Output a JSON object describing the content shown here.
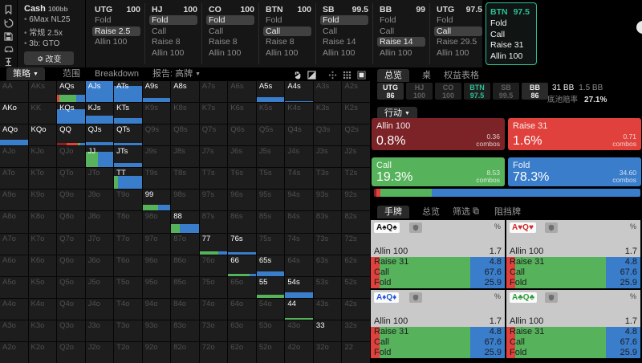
{
  "colors": {
    "allin": "#8c2023",
    "raise": "#e0413c",
    "call": "#56b35c",
    "fold": "#3a7dcb",
    "teal": "#2bbf96"
  },
  "sidebar": {
    "icons": [
      "bookmark-icon",
      "history-icon",
      "save-icon",
      "car-icon",
      "slider-icon"
    ]
  },
  "config": {
    "game": "Cash",
    "stakes": "100bb",
    "bullets": [
      "6Max NL25",
      "常规 2.5x",
      "3b: GTO"
    ],
    "change_button": "改变"
  },
  "action_tree": {
    "columns": [
      {
        "name": "UTG",
        "stack": "100",
        "active": false,
        "actions": [
          {
            "t": "Fold"
          },
          {
            "t": "Raise 2.5",
            "hl": true
          },
          {
            "t": "Allin 100"
          }
        ]
      },
      {
        "name": "HJ",
        "stack": "100",
        "active": false,
        "actions": [
          {
            "t": "Fold",
            "hl": true
          },
          {
            "t": "Call"
          },
          {
            "t": "Raise 8"
          },
          {
            "t": "Allin 100"
          }
        ]
      },
      {
        "name": "CO",
        "stack": "100",
        "active": false,
        "actions": [
          {
            "t": "Fold",
            "hl": true
          },
          {
            "t": "Call"
          },
          {
            "t": "Raise 8"
          },
          {
            "t": "Allin 100"
          }
        ]
      },
      {
        "name": "BTN",
        "stack": "100",
        "active": false,
        "actions": [
          {
            "t": "Fold"
          },
          {
            "t": "Call",
            "hl": true
          },
          {
            "t": "Raise 8"
          },
          {
            "t": "Allin 100"
          }
        ]
      },
      {
        "name": "SB",
        "stack": "99.5",
        "active": false,
        "actions": [
          {
            "t": "Fold",
            "hl": true
          },
          {
            "t": "Call"
          },
          {
            "t": "Raise 14"
          },
          {
            "t": "Allin 100"
          }
        ]
      },
      {
        "name": "BB",
        "stack": "99",
        "active": false,
        "actions": [
          {
            "t": "Fold"
          },
          {
            "t": "Call"
          },
          {
            "t": "Raise 14",
            "hl": true
          },
          {
            "t": "Allin 100"
          }
        ]
      },
      {
        "name": "UTG",
        "stack": "97.5",
        "active": false,
        "actions": [
          {
            "t": "Fold"
          },
          {
            "t": "Call",
            "hl": true
          },
          {
            "t": "Raise 29.5"
          },
          {
            "t": "Allin 100"
          }
        ]
      },
      {
        "name": "BTN",
        "stack": "97.5",
        "active": true,
        "actions": [
          {
            "t": "Fold"
          },
          {
            "t": "Call"
          },
          {
            "t": "Raise 31"
          },
          {
            "t": "Allin 100"
          }
        ]
      }
    ]
  },
  "matrix_toolbar": {
    "tabs": [
      {
        "label": "策略",
        "caret": true,
        "active": true
      },
      {
        "label": "范围",
        "caret": false,
        "active": false
      },
      {
        "label": "Breakdown",
        "caret": false,
        "active": false
      },
      {
        "label": "报告: 高牌",
        "caret": true,
        "active": false
      }
    ],
    "icons": [
      "hand-icon",
      "contrast-icon",
      "crosshair-icon",
      "grid-icon",
      "square-icon"
    ]
  },
  "matrix": {
    "rows": [
      "AA AKs AQs AJs ATs A9s A8s A7s A6s A5s A4s A3s A2s",
      "AKo KK KQs KJs KTs K9s K8s K7s K6s K5s K4s K3s K2s",
      "AQo KQo QQ QJs QTs Q9s Q8s Q7s Q6s Q5s Q4s Q3s Q2s",
      "AJo KJo QJo JJ JTs J9s J8s J7s J6s J5s J4s J3s J2s",
      "ATo KTo QTo JTo TT T9s T8s T7s T6s T5s T4s T3s T2s",
      "A9o K9o Q9o J9o T9o 99 98s 97s 96s 95s 94s 93s 92s",
      "A8o K8o Q8o J8o T8o 98o 88 87s 86s 85s 84s 83s 82s",
      "A7o K7o Q7o J7o T7o 97o 87o 77 76s 75s 74s 73s 72s",
      "A6o K6o Q6o J6o T6o 96o 86o 76o 66 65s 64s 63s 62s",
      "A5o K5o Q5o J5o T5o 95o 85o 75o 65o 55 54s 53s 52s",
      "A4o K4o Q4o J4o T4o 94o 84o 74o 64o 54o 44 43s 42s",
      "A3o K3o Q3o J3o T3o 93o 83o 73o 63o 53o 43o 33 32s",
      "A2o K2o Q2o J2o T2o 92o 82o 72o 62o 52o 42o 32o 22"
    ],
    "in_range": [
      "AQs",
      "AJs",
      "ATs",
      "A9s",
      "A8s",
      "A5s",
      "A4s",
      "AKo",
      "KQs",
      "KJs",
      "KTs",
      "AQo",
      "KQo",
      "QQ",
      "QJs",
      "QTs",
      "JJ",
      "JTs",
      "TT",
      "99",
      "88",
      "77",
      "76s",
      "66",
      "65s",
      "55",
      "54s",
      "44",
      "33"
    ],
    "bars": {
      "AQs": {
        "h": 0.33,
        "segs": [
          [
            "raise",
            0.09
          ],
          [
            "call",
            0.61
          ],
          [
            "fold",
            0.3
          ]
        ]
      },
      "AJs": {
        "h": 1.0,
        "segs": [
          [
            "fold",
            1
          ]
        ]
      },
      "ATs": {
        "h": 0.78,
        "segs": [
          [
            "fold",
            1
          ]
        ]
      },
      "A9s": {
        "h": 0.2,
        "segs": [
          [
            "fold",
            1
          ]
        ]
      },
      "A5s": {
        "h": 0.23,
        "segs": [
          [
            "fold",
            1
          ]
        ]
      },
      "A4s": {
        "h": 0.06,
        "segs": [
          [
            "fold",
            1
          ]
        ]
      },
      "KQs": {
        "h": 0.7,
        "segs": [
          [
            "fold",
            1
          ]
        ]
      },
      "KJs": {
        "h": 0.4,
        "segs": [
          [
            "fold",
            1
          ]
        ]
      },
      "KTs": {
        "h": 0.28,
        "segs": [
          [
            "fold",
            1
          ]
        ]
      },
      "AQo": {
        "h": 0.26,
        "segs": [
          [
            "fold",
            1
          ]
        ]
      },
      "QQ": {
        "h": 0.13,
        "segs": [
          [
            "allin",
            0.35
          ],
          [
            "raise",
            0.4
          ],
          [
            "call",
            0.1
          ],
          [
            "fold",
            0.15
          ]
        ]
      },
      "QJs": {
        "h": 0.18,
        "segs": [
          [
            "fold",
            1
          ]
        ]
      },
      "QTs": {
        "h": 0.14,
        "segs": [
          [
            "fold",
            1
          ]
        ]
      },
      "JJ": {
        "h": 0.75,
        "segs": [
          [
            "call",
            0.45
          ],
          [
            "fold",
            0.55
          ]
        ]
      },
      "JTs": {
        "h": 0.22,
        "segs": [
          [
            "fold",
            1
          ]
        ]
      },
      "TT": {
        "h": 0.63,
        "segs": [
          [
            "call",
            0.14
          ],
          [
            "fold",
            0.86
          ]
        ]
      },
      "99": {
        "h": 0.3,
        "segs": [
          [
            "call",
            0.55
          ],
          [
            "fold",
            0.45
          ]
        ]
      },
      "88": {
        "h": 0.4,
        "segs": [
          [
            "call",
            0.3
          ],
          [
            "fold",
            0.7
          ]
        ]
      },
      "77": {
        "h": 0.15,
        "segs": [
          [
            "call",
            0.68
          ],
          [
            "fold",
            0.32
          ]
        ]
      },
      "76s": {
        "h": 0.1,
        "segs": [
          [
            "fold",
            1
          ]
        ]
      },
      "66": {
        "h": 0.12,
        "segs": [
          [
            "call",
            0.78
          ],
          [
            "fold",
            0.22
          ]
        ]
      },
      "65s": {
        "h": 0.23,
        "segs": [
          [
            "fold",
            1
          ]
        ]
      },
      "55": {
        "h": 0.15,
        "segs": [
          [
            "call",
            1
          ]
        ]
      },
      "54s": {
        "h": 0.26,
        "segs": [
          [
            "fold",
            1
          ]
        ]
      },
      "44": {
        "h": 0.07,
        "segs": [
          [
            "call",
            1
          ]
        ]
      }
    }
  },
  "overview": {
    "tabs": [
      {
        "label": "总览",
        "active": true
      },
      {
        "label": "桌",
        "active": false
      },
      {
        "label": "权益表格",
        "active": false
      }
    ],
    "positions": [
      {
        "name": "UTG",
        "stack": "86",
        "state": "white"
      },
      {
        "name": "HJ",
        "stack": "100",
        "state": "dim"
      },
      {
        "name": "CO",
        "stack": "100",
        "state": "dim"
      },
      {
        "name": "BTN",
        "stack": "97.5",
        "state": "teal"
      },
      {
        "name": "SB",
        "stack": "99.5",
        "state": "dim"
      },
      {
        "name": "BB",
        "stack": "86",
        "state": "white"
      }
    ],
    "pot": {
      "amount": "31 BB",
      "extra": "1.5 BB",
      "odds_label": "底池赔率",
      "odds_value": "27.1%"
    },
    "action_section_label": "行动",
    "combos_word": "combos",
    "action_cards": [
      {
        "label": "Allin 100",
        "percent": "0.8%",
        "combos": "0.36",
        "color": "#7c2327"
      },
      {
        "label": "Raise 31",
        "percent": "1.6%",
        "combos": "0.71",
        "color": "#e0413c"
      },
      {
        "label": "Call",
        "percent": "19.3%",
        "combos": "8.53",
        "color": "#56b35c"
      },
      {
        "label": "Fold",
        "percent": "78.3%",
        "combos": "34.60",
        "color": "#3a7dcb"
      }
    ],
    "strategy_bar": [
      {
        "color": "#8c2023",
        "pct": 0.8
      },
      {
        "color": "#e0413c",
        "pct": 1.6
      },
      {
        "color": "#56b35c",
        "pct": 19.3
      },
      {
        "color": "#3a7dcb",
        "pct": 78.3
      }
    ]
  },
  "hands": {
    "tabs": [
      {
        "label": "手牌",
        "active": true,
        "icon": null
      },
      {
        "label": "总览",
        "active": false,
        "icon": null
      },
      {
        "label": "筛选",
        "active": false,
        "icon": "copy-icon"
      },
      {
        "label": "阻挡牌",
        "active": false,
        "icon": null
      }
    ],
    "percent_symbol": "%",
    "cards": [
      {
        "combo": "A♠Q♠",
        "suit_color": "#111111",
        "rows": [
          {
            "label": "Allin 100",
            "value": "1.7"
          },
          {
            "label": "Raise 31",
            "value": "4.8"
          },
          {
            "label": "Call",
            "value": "67.6"
          },
          {
            "label": "Fold",
            "value": "25.9"
          }
        ],
        "bar": {
          "red": 6.5,
          "green": 67.6,
          "blue": 25.9
        }
      },
      {
        "combo": "A♥Q♥",
        "suit_color": "#d12a2a",
        "rows": [
          {
            "label": "Allin 100",
            "value": "1.7"
          },
          {
            "label": "Raise 31",
            "value": "4.8"
          },
          {
            "label": "Call",
            "value": "67.6"
          },
          {
            "label": "Fold",
            "value": "25.9"
          }
        ],
        "bar": {
          "red": 6.5,
          "green": 67.6,
          "blue": 25.9
        }
      },
      {
        "combo": "A♦Q♦",
        "suit_color": "#2356d8",
        "rows": [
          {
            "label": "Allin 100",
            "value": "1.7"
          },
          {
            "label": "Raise 31",
            "value": "4.8"
          },
          {
            "label": "Call",
            "value": "67.6"
          },
          {
            "label": "Fold",
            "value": "25.9"
          }
        ],
        "bar": {
          "red": 6.5,
          "green": 67.6,
          "blue": 25.9
        }
      },
      {
        "combo": "A♣Q♣",
        "suit_color": "#2d9e3a",
        "rows": [
          {
            "label": "Allin 100",
            "value": "1.7"
          },
          {
            "label": "Raise 31",
            "value": "4.8"
          },
          {
            "label": "Call",
            "value": "67.6"
          },
          {
            "label": "Fold",
            "value": "25.9"
          }
        ],
        "bar": {
          "red": 6.5,
          "green": 67.6,
          "blue": 25.9
        }
      }
    ]
  }
}
